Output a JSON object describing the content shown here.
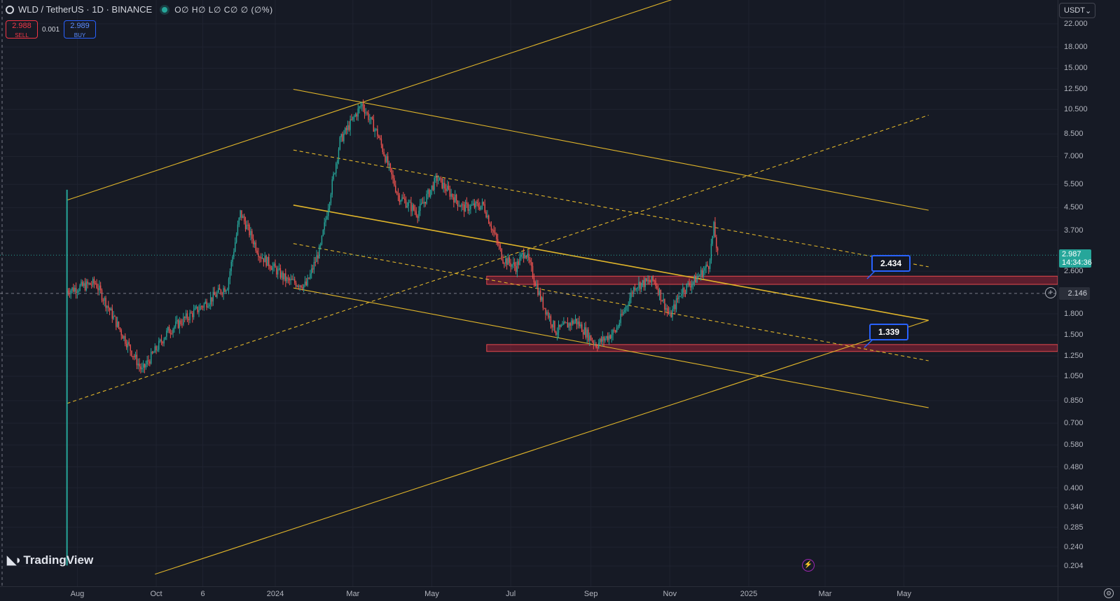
{
  "header": {
    "symbol_line": "WLD / TetherUS · 1D · BINANCE",
    "ohlc": "O∅ H∅ L∅ C∅ ∅ (∅%)"
  },
  "trade": {
    "sell_price": "2.988",
    "sell_label": "SELL",
    "spread": "0.001",
    "buy_price": "2.989",
    "buy_label": "BUY"
  },
  "currency": "USDT",
  "price_axis": [
    "22.000",
    "18.000",
    "15.000",
    "12.500",
    "10.500",
    "8.500",
    "7.000",
    "5.500",
    "4.500",
    "3.700",
    "2.600",
    "1.800",
    "1.500",
    "1.250",
    "1.050",
    "0.850",
    "0.700",
    "0.580",
    "0.480",
    "0.400",
    "0.340",
    "0.285",
    "0.240",
    "0.204"
  ],
  "time_axis": [
    "Aug",
    "Oct",
    "6",
    "2024",
    "Mar",
    "May",
    "Jul",
    "Sep",
    "Nov",
    "2025",
    "Mar",
    "May"
  ],
  "current_price": {
    "price": "2.987",
    "countdown": "14:34:36",
    "color": "#26a69a"
  },
  "crosshair_price": "2.146",
  "callouts": [
    "2.434",
    "1.339"
  ],
  "watermark": "TradingView",
  "colors": {
    "up": "#26a69a",
    "down": "#ef5350",
    "trendline": "#e0b52a",
    "zone": "#b2243a"
  },
  "chart_data": {
    "type": "candlestick",
    "title": "WLD / TetherUS · 1D · BINANCE",
    "scale": "log",
    "ylim": [
      0.195,
      23
    ],
    "x": [
      "2023-07-24",
      "2023-08-15",
      "2023-09-05",
      "2023-09-20",
      "2023-10-10",
      "2023-11-01",
      "2023-11-25",
      "2023-12-05",
      "2023-12-20",
      "2024-01-10",
      "2024-01-25",
      "2024-02-05",
      "2024-02-20",
      "2024-03-08",
      "2024-03-20",
      "2024-04-05",
      "2024-04-20",
      "2024-05-05",
      "2024-05-25",
      "2024-06-10",
      "2024-06-25",
      "2024-07-05",
      "2024-07-12",
      "2024-07-25",
      "2024-08-05",
      "2024-08-20",
      "2024-09-05",
      "2024-09-20",
      "2024-10-05",
      "2024-10-20",
      "2024-11-01",
      "2024-11-10",
      "2024-11-20",
      "2024-12-01",
      "2024-12-05",
      "2024-12-08"
    ],
    "close": [
      2.2,
      2.35,
      1.5,
      1.1,
      1.55,
      1.85,
      2.3,
      4.3,
      3.0,
      2.4,
      2.3,
      3.2,
      8.0,
      11.0,
      8.5,
      5.0,
      4.3,
      5.8,
      4.5,
      4.6,
      2.9,
      2.7,
      3.1,
      2.0,
      1.55,
      1.7,
      1.38,
      1.55,
      2.3,
      2.4,
      1.75,
      2.2,
      2.4,
      2.75,
      3.8,
      2.987
    ],
    "trend_lines": [
      {
        "name": "channel-upper-rising",
        "from": [
          "2023-07-24",
          4.8
        ],
        "to": [
          "2024-11-30",
          30.0
        ]
      },
      {
        "name": "channel-lower-rising",
        "from": [
          "2023-09-30",
          0.19
        ],
        "to": [
          "2025-05-20",
          1.7
        ]
      },
      {
        "name": "dashed-rising",
        "from": [
          "2023-07-24",
          0.83
        ],
        "to": [
          "2025-05-20",
          10.0
        ]
      },
      {
        "name": "channel-upper-falling",
        "from": [
          "2024-01-15",
          12.5
        ],
        "to": [
          "2025-05-20",
          4.4
        ]
      },
      {
        "name": "channel-mid-falling",
        "from": [
          "2024-01-15",
          4.6
        ],
        "to": [
          "2025-05-20",
          1.7
        ]
      },
      {
        "name": "channel-lower-falling",
        "from": [
          "2024-01-15",
          2.25
        ],
        "to": [
          "2025-05-20",
          0.8
        ]
      },
      {
        "name": "dashed-upper-falling",
        "from": [
          "2024-01-15",
          7.4
        ],
        "to": [
          "2025-05-20",
          2.7
        ]
      },
      {
        "name": "dashed-lower-falling",
        "from": [
          "2024-01-15",
          3.3
        ],
        "to": [
          "2025-05-20",
          1.2
        ]
      }
    ],
    "zones": [
      {
        "low": 2.32,
        "high": 2.49,
        "from": "2024-06-20"
      },
      {
        "low": 1.3,
        "high": 1.38,
        "from": "2024-06-20"
      }
    ]
  }
}
